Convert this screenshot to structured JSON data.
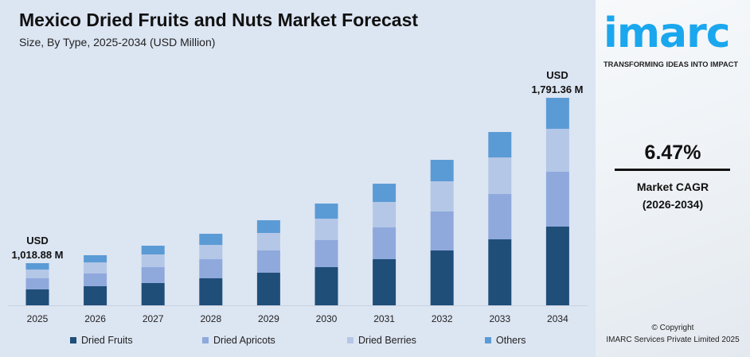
{
  "header": {
    "title": "Mexico Dried Fruits and Nuts Market Forecast",
    "subtitle": "Size, By Type, 2025-2034 (USD Million)"
  },
  "chart_data": {
    "type": "bar",
    "stacked": true,
    "categories": [
      "2025",
      "2026",
      "2027",
      "2028",
      "2029",
      "2030",
      "2031",
      "2032",
      "2033",
      "2034"
    ],
    "series": [
      {
        "name": "Dried Fruits",
        "color": "#1f4e79",
        "values": [
          384.5,
          402.3,
          410.9,
          436.8,
          467.3,
          486.5,
          527.0,
          566.2,
          621.2,
          679.5
        ]
      },
      {
        "name": "Dried Apricots",
        "color": "#8fa9dc",
        "values": [
          268.9,
          268.2,
          293.5,
          308.3,
          319.1,
          344.6,
          363.4,
          402.1,
          426.6,
          473.6
        ]
      },
      {
        "name": "Dried Berries",
        "color": "#b4c7e7",
        "values": [
          211.5,
          234.7,
          234.8,
          231.2,
          250.7,
          273.6,
          290.8,
          311.8,
          344.3,
          370.6
        ]
      },
      {
        "name": "Others",
        "color": "#5b9bd5",
        "values": [
          154.0,
          150.8,
          161.4,
          179.9,
          182.3,
          192.6,
          209.0,
          221.5,
          239.5,
          267.7
        ]
      }
    ],
    "totals": [
      1018.88,
      1056.0,
      1100.5,
      1156.2,
      1219.4,
      1297.4,
      1390.2,
      1501.6,
      1631.6,
      1791.36
    ],
    "annotations": {
      "first": {
        "line1": "USD",
        "line2": "1,018.88 M"
      },
      "last": {
        "line1": "USD",
        "line2": "1,791.36 M"
      }
    },
    "legend_position": "bottom",
    "grid": false
  },
  "brand": {
    "logo": "imarc",
    "tagline": "TRANSFORMING IDEAS INTO IMPACT"
  },
  "cagr": {
    "value": "6.47%",
    "label": "Market CAGR",
    "period": "(2026-2034)"
  },
  "footer": {
    "copyright": "© Copyright",
    "company": "IMARC Services Private Limited 2025"
  }
}
